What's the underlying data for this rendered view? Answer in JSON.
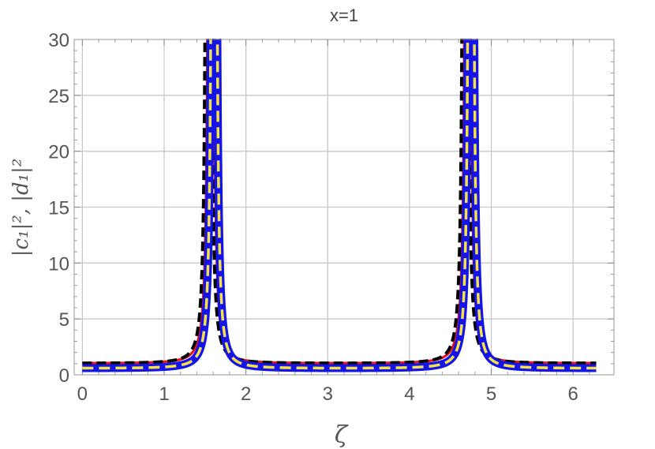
{
  "chart_data": {
    "type": "line",
    "title": "x=1",
    "xlabel": "ζ",
    "ylabel": "|c₁|², |d₁|²",
    "xlim": [
      -0.1,
      6.5
    ],
    "ylim": [
      0,
      30
    ],
    "xticks": [
      "0",
      "1",
      "2",
      "3",
      "4",
      "5",
      "6"
    ],
    "yticks": [
      "0",
      "5",
      "10",
      "15",
      "20",
      "25",
      "30"
    ],
    "grid": true,
    "legend": "none",
    "x_range_plotted": [
      0,
      6.283
    ],
    "resonances": [
      1.57,
      4.71
    ],
    "series": [
      {
        "style": "solid",
        "color": "#e8141c",
        "pole_shift": 0.0,
        "baseline": 1.0,
        "sample_points": [
          [
            0,
            1.0
          ],
          [
            1,
            2.8
          ],
          [
            1.3,
            11.1
          ],
          [
            1.57,
            30
          ],
          [
            1.8,
            20.0
          ],
          [
            2,
            5.6
          ],
          [
            3,
            1.0
          ],
          [
            4,
            3.4
          ],
          [
            4.5,
            22.7
          ],
          [
            4.71,
            30
          ],
          [
            5,
            11.8
          ],
          [
            6,
            1.2
          ],
          [
            6.283,
            1.0
          ]
        ]
      },
      {
        "style": "dashed",
        "color": "#000000",
        "pole_shift": -0.03,
        "baseline": 1.0,
        "sample_points": [
          [
            0,
            1.0
          ],
          [
            1,
            3.0
          ],
          [
            1.3,
            13.0
          ],
          [
            1.57,
            30
          ],
          [
            1.8,
            16.0
          ],
          [
            2,
            5.0
          ],
          [
            3,
            1.0
          ],
          [
            4,
            3.8
          ],
          [
            4.5,
            30
          ],
          [
            4.71,
            30
          ],
          [
            5,
            9.6
          ],
          [
            6,
            1.2
          ],
          [
            6.283,
            1.0
          ]
        ]
      },
      {
        "style": "solid-thick",
        "color": "#1414e6",
        "pole_shift": 0.04,
        "baseline": 0.55,
        "sample_points": [
          [
            0,
            0.55
          ],
          [
            1,
            2.4
          ],
          [
            1.3,
            7.0
          ],
          [
            1.57,
            30
          ],
          [
            1.8,
            30
          ],
          [
            2,
            3.7
          ],
          [
            3,
            0.55
          ],
          [
            4,
            2.0
          ],
          [
            4.5,
            11.0
          ],
          [
            4.71,
            30
          ],
          [
            5,
            8.6
          ],
          [
            6,
            0.7
          ],
          [
            6.283,
            0.55
          ]
        ]
      },
      {
        "style": "dashed",
        "color": "#f5e14a",
        "pole_shift": 0.04,
        "baseline": 0.55,
        "sample_points": [
          [
            0,
            0.55
          ],
          [
            1,
            2.4
          ],
          [
            1.3,
            7.0
          ],
          [
            1.57,
            30
          ],
          [
            1.8,
            30
          ],
          [
            2,
            3.7
          ],
          [
            3,
            0.55
          ],
          [
            4,
            2.0
          ],
          [
            4.5,
            11.0
          ],
          [
            4.71,
            30
          ],
          [
            5,
            8.6
          ],
          [
            6,
            0.7
          ],
          [
            6.283,
            0.55
          ]
        ]
      }
    ]
  }
}
